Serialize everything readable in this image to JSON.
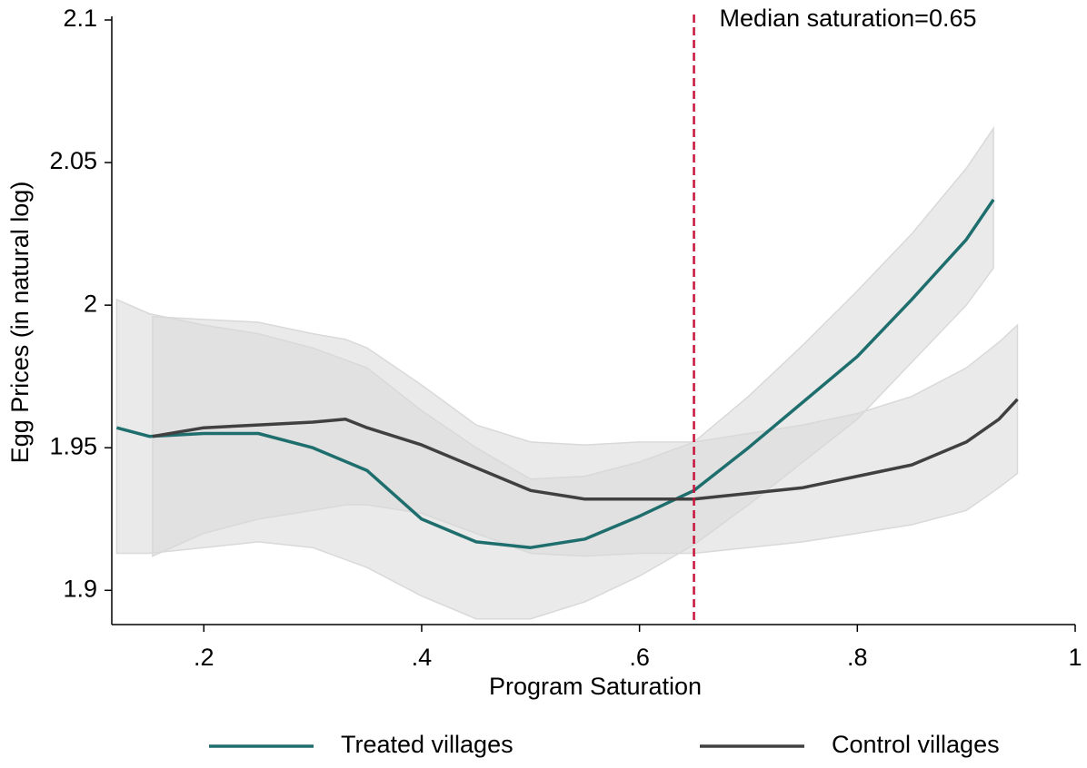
{
  "chart_data": {
    "type": "line",
    "xlabel": "Program Saturation",
    "ylabel": "Egg Prices (in natural log)",
    "xlim": [
      0.1155,
      1
    ],
    "ylim": [
      1.888,
      2.1
    ],
    "xticks": [
      {
        "value": 0.2,
        "label": ".2"
      },
      {
        "value": 0.4,
        "label": ".4"
      },
      {
        "value": 0.6,
        "label": ".6"
      },
      {
        "value": 0.8,
        "label": ".8"
      },
      1
    ],
    "yticks": [
      1.9,
      1.95,
      2,
      2.05,
      2.1
    ],
    "vline": {
      "x": 0.65,
      "label": "Median saturation=0.65",
      "color": "#c8143c"
    },
    "band_color": "#d9d9d9",
    "series": [
      {
        "name": "Treated villages",
        "color": "#1f6e6e",
        "x": [
          0.12,
          0.15,
          0.2,
          0.25,
          0.3,
          0.35,
          0.4,
          0.45,
          0.5,
          0.55,
          0.6,
          0.65,
          0.7,
          0.75,
          0.8,
          0.85,
          0.9,
          0.925
        ],
        "values": [
          1.957,
          1.954,
          1.955,
          1.955,
          1.95,
          1.942,
          1.925,
          1.917,
          1.915,
          1.918,
          1.926,
          1.935,
          1.95,
          1.966,
          1.982,
          2.002,
          2.023,
          2.037
        ],
        "upper": [
          2.002,
          1.997,
          1.993,
          1.99,
          1.985,
          1.978,
          1.963,
          1.95,
          1.939,
          1.94,
          1.945,
          1.952,
          1.968,
          1.986,
          2.005,
          2.025,
          2.048,
          2.062
        ],
        "lower": [
          1.913,
          1.913,
          1.915,
          1.917,
          1.915,
          1.908,
          1.898,
          1.89,
          1.89,
          1.896,
          1.905,
          1.916,
          1.93,
          1.945,
          1.96,
          1.98,
          2.0,
          2.013
        ]
      },
      {
        "name": "Control villages",
        "color": "#404040",
        "x": [
          0.153,
          0.2,
          0.25,
          0.3,
          0.33,
          0.35,
          0.4,
          0.45,
          0.5,
          0.55,
          0.6,
          0.65,
          0.7,
          0.75,
          0.8,
          0.85,
          0.9,
          0.93,
          0.947
        ],
        "values": [
          1.954,
          1.957,
          1.958,
          1.959,
          1.96,
          1.957,
          1.951,
          1.943,
          1.935,
          1.932,
          1.932,
          1.932,
          1.934,
          1.936,
          1.94,
          1.944,
          1.952,
          1.96,
          1.967
        ],
        "upper": [
          1.996,
          1.995,
          1.994,
          1.99,
          1.988,
          1.985,
          1.972,
          1.958,
          1.952,
          1.951,
          1.952,
          1.952,
          1.955,
          1.958,
          1.962,
          1.968,
          1.978,
          1.987,
          1.993
        ],
        "lower": [
          1.912,
          1.92,
          1.925,
          1.928,
          1.93,
          1.93,
          1.927,
          1.92,
          1.913,
          1.912,
          1.913,
          1.913,
          1.915,
          1.917,
          1.92,
          1.923,
          1.928,
          1.936,
          1.941
        ]
      }
    ]
  }
}
